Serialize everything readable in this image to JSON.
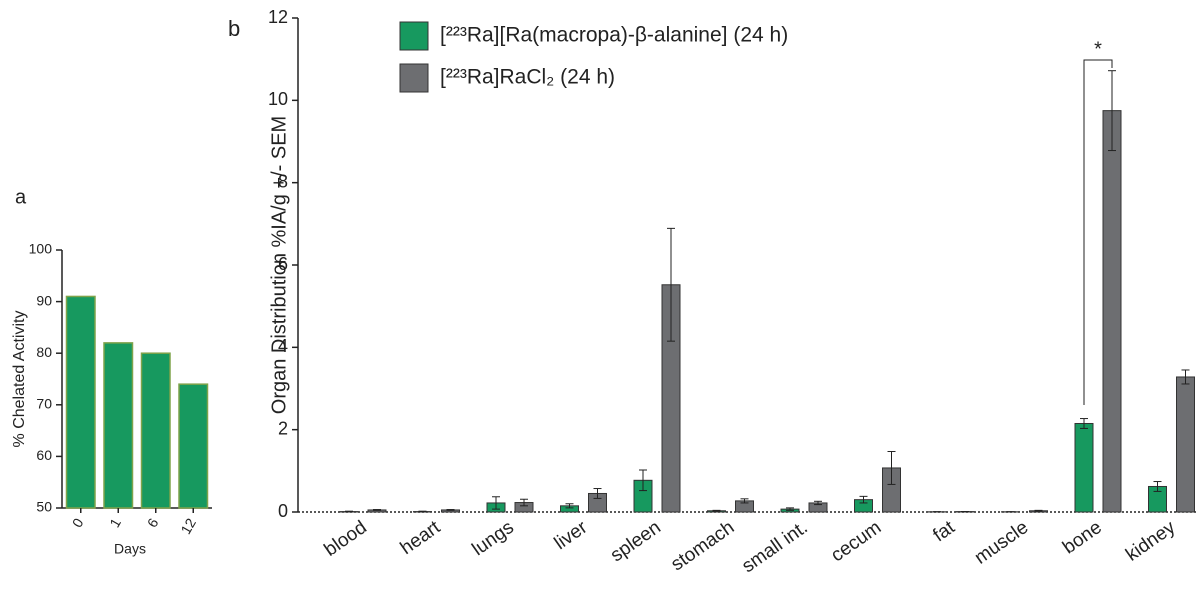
{
  "chart_data": [
    {
      "type": "bar",
      "panel_label": "a",
      "y_label": "% Chelated Activity",
      "x_label": "Days",
      "categories": [
        "0",
        "1",
        "6",
        "12"
      ],
      "values": [
        91,
        82,
        80,
        74
      ],
      "color": "#17995f",
      "ylim": [
        50,
        100
      ],
      "yticks": [
        50,
        60,
        70,
        80,
        90,
        100
      ]
    },
    {
      "type": "bar",
      "panel_label": "b",
      "y_label": "Organ Distribution %IA/g +/- SEM",
      "categories": [
        "blood",
        "heart",
        "lungs",
        "liver",
        "spleen",
        "stomach",
        "small int.",
        "cecum",
        "fat",
        "muscle",
        "bone",
        "kidney"
      ],
      "series": [
        {
          "name": "[²²³Ra][Ra(macropa)-β-alanine] (24 h)",
          "color": "#17995f",
          "values": [
            0.01,
            0.01,
            0.22,
            0.15,
            0.77,
            0.03,
            0.07,
            0.3,
            0.005,
            0.005,
            2.15,
            0.62
          ],
          "errors": [
            0.01,
            0.01,
            0.15,
            0.05,
            0.25,
            0.01,
            0.03,
            0.08,
            0,
            0,
            0.12,
            0.12
          ]
        },
        {
          "name": "[²²³Ra]RaCl₂ (24 h)",
          "color": "#6d6e71",
          "values": [
            0.05,
            0.05,
            0.23,
            0.45,
            5.52,
            0.27,
            0.22,
            1.07,
            0.01,
            0.03,
            9.75,
            3.28
          ],
          "errors": [
            0.01,
            0.01,
            0.08,
            0.12,
            1.37,
            0.05,
            0.04,
            0.4,
            0,
            0.01,
            0.97,
            0.17
          ]
        }
      ],
      "significance": "*",
      "ylim": [
        0,
        12
      ],
      "yticks": [
        0,
        2,
        4,
        6,
        8,
        10,
        12
      ]
    }
  ]
}
